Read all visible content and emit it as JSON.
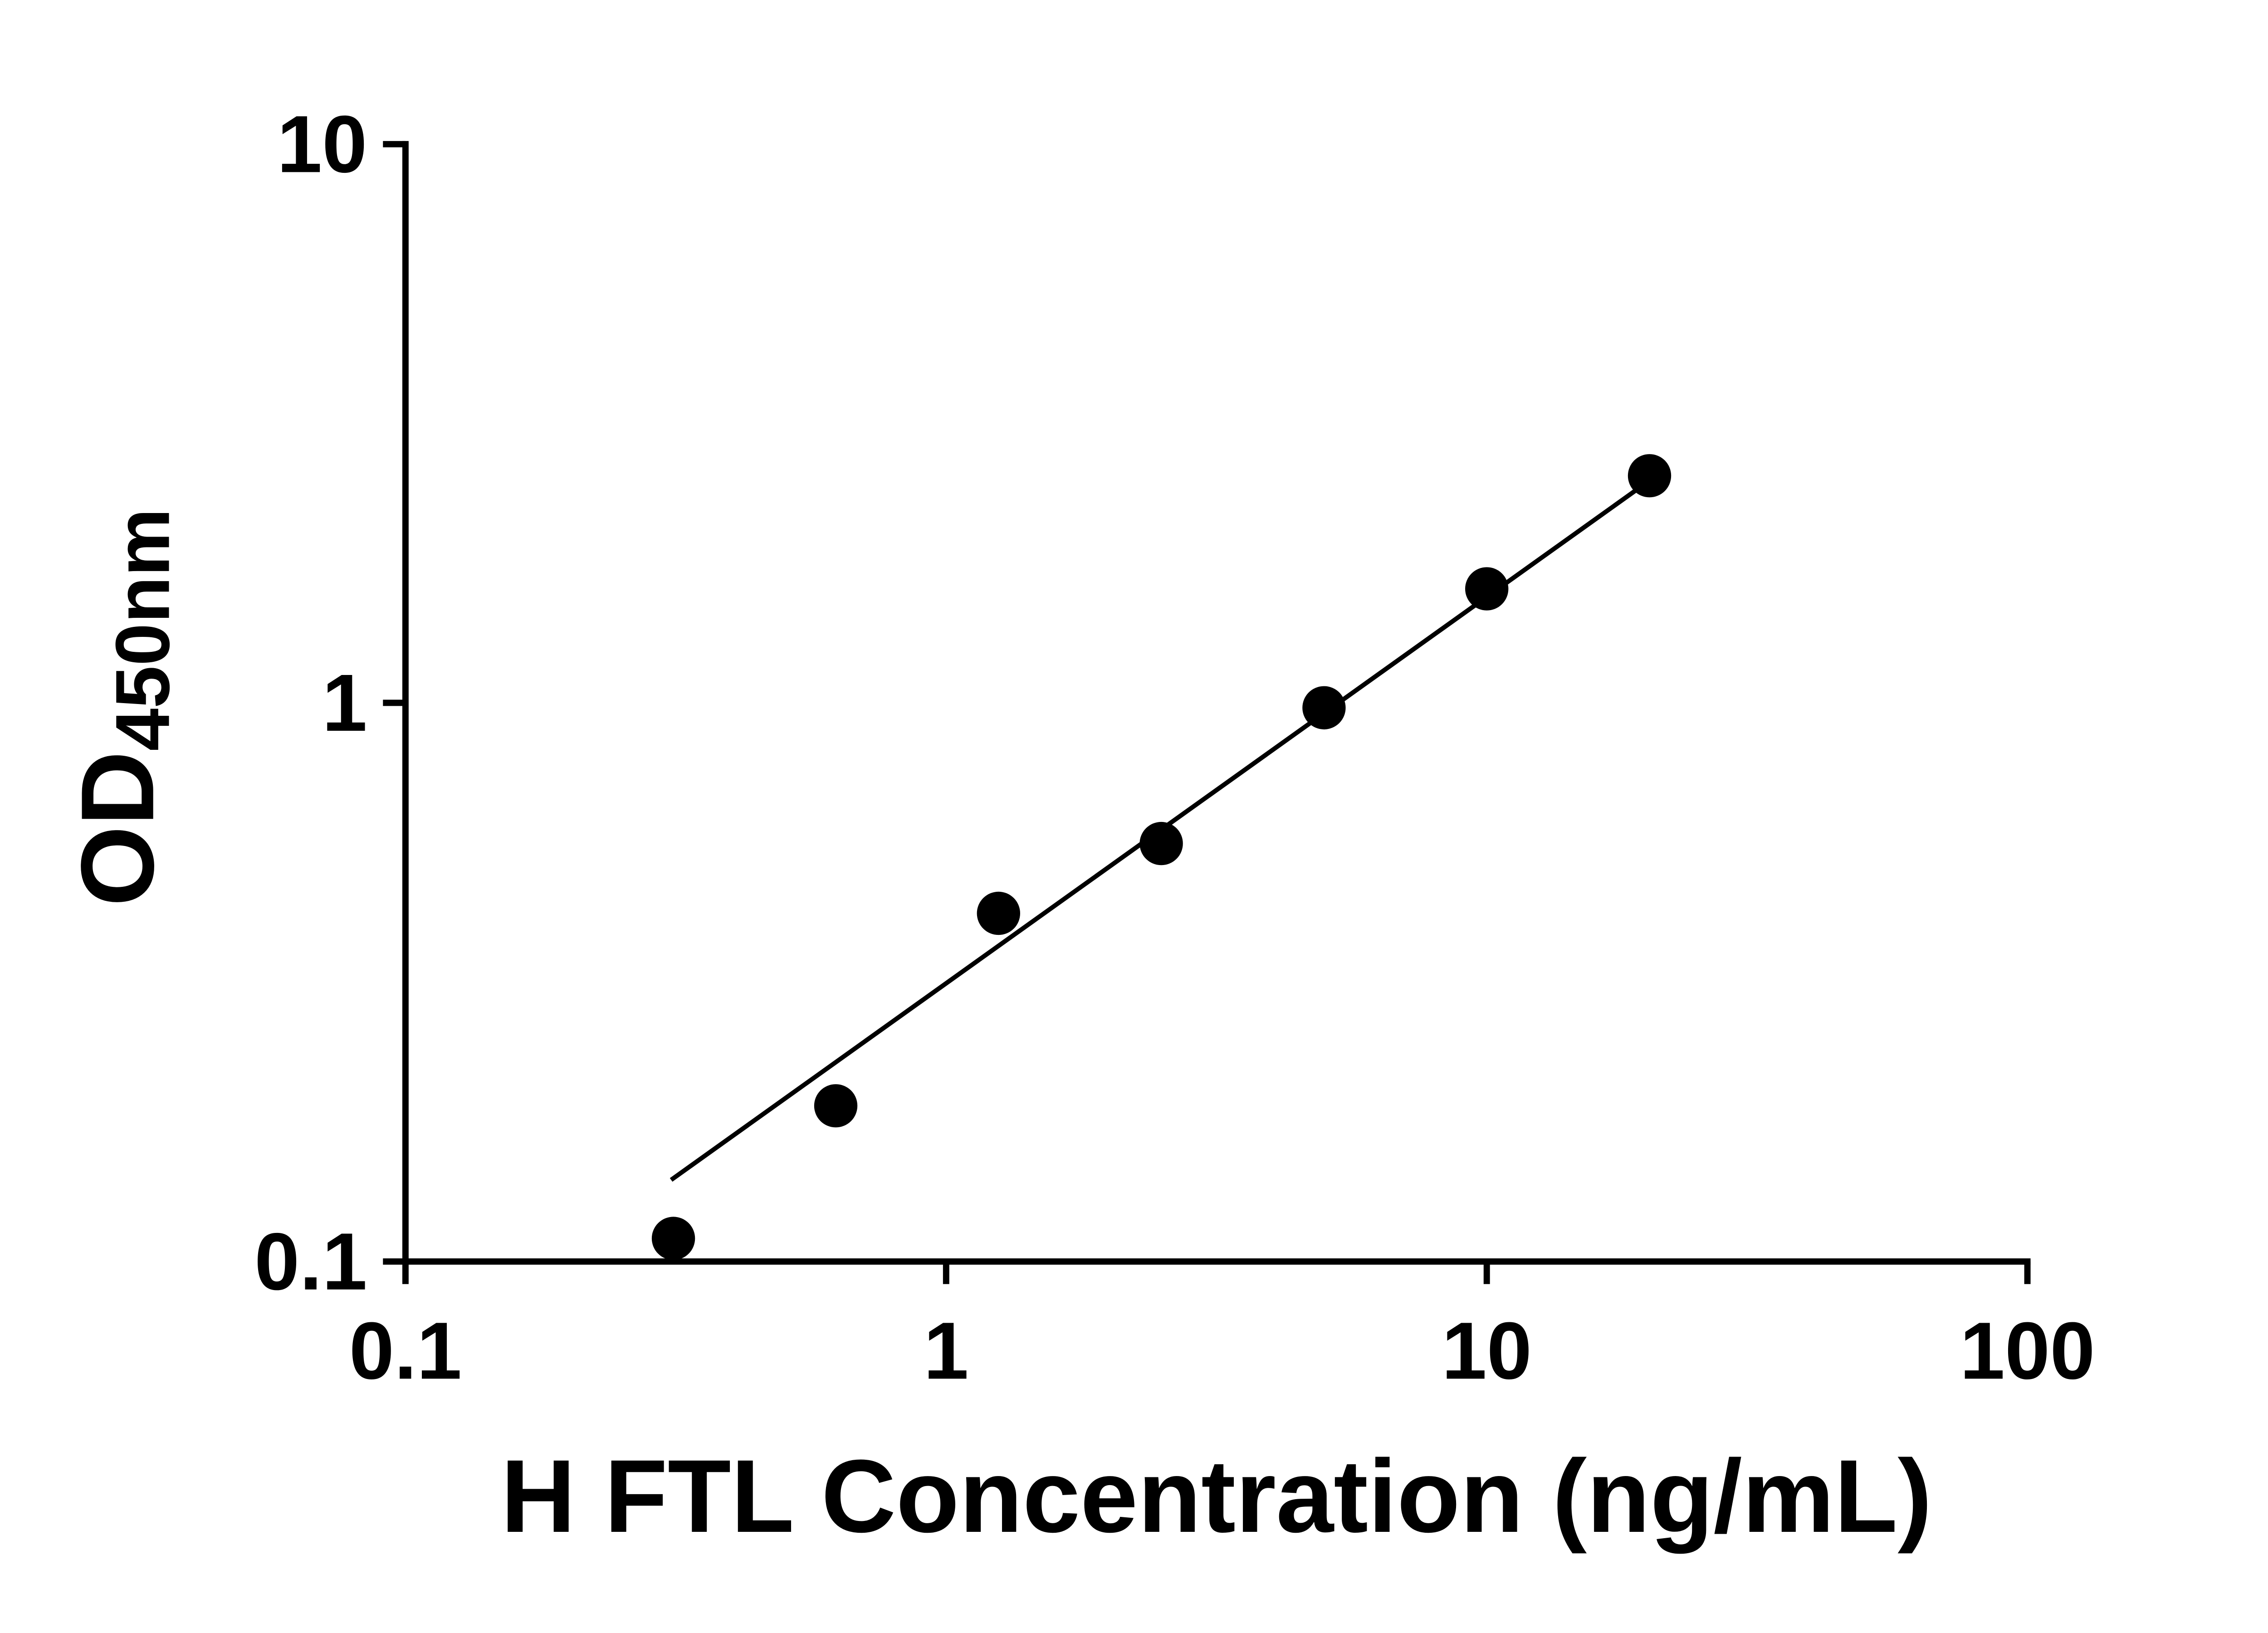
{
  "chart": {
    "xlabel": "H FTL Concentration (ng/mL)",
    "ylabel_main": "OD",
    "ylabel_sub": "450nm"
  },
  "chart_data": {
    "type": "scatter",
    "title": "",
    "xlabel": "H FTL Concentration (ng/mL)",
    "ylabel": "OD450nm",
    "x_scale": "log",
    "y_scale": "log",
    "xlim": [
      0.1,
      100
    ],
    "ylim": [
      0.1,
      10
    ],
    "x_ticks": [
      0.1,
      1,
      10,
      100
    ],
    "x_tick_labels": [
      "0.1",
      "1",
      "10",
      "100"
    ],
    "y_ticks": [
      0.1,
      1,
      10
    ],
    "y_tick_labels": [
      "0.1",
      "1",
      "10"
    ],
    "grid": false,
    "legend": false,
    "marker_color": "#000000",
    "line_color": "#000000",
    "axis_color": "#000000",
    "points": [
      {
        "x": 0.313,
        "y": 0.11
      },
      {
        "x": 0.625,
        "y": 0.19
      },
      {
        "x": 1.25,
        "y": 0.42
      },
      {
        "x": 2.5,
        "y": 0.56
      },
      {
        "x": 5,
        "y": 0.98
      },
      {
        "x": 10,
        "y": 1.6
      },
      {
        "x": 20,
        "y": 2.55
      }
    ],
    "trend_line": {
      "x1": 0.31,
      "y1": 0.14,
      "x2": 20,
      "y2": 2.5
    }
  }
}
